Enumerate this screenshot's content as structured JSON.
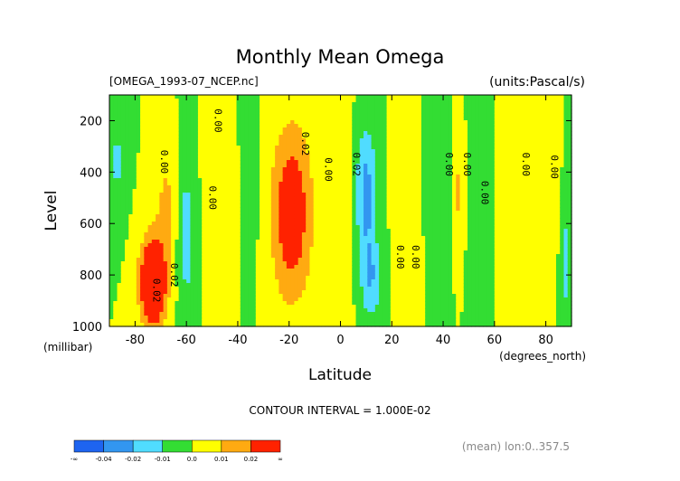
{
  "chart_data": {
    "type": "heatmap",
    "title": "Monthly Mean Omega",
    "subtitle_left": "[OMEGA_1993-07_NCEP.nc]",
    "subtitle_right": "(units:Pascal/s)",
    "xlabel": "Latitude",
    "x_units": "(degrees_north)",
    "ylabel": "Level",
    "y_units": "(millibar)",
    "xlim": [
      -90,
      90
    ],
    "ylim": [
      1000,
      100
    ],
    "y_scale": "linear, inverted",
    "x_ticks": [
      "-80",
      "-60",
      "-40",
      "-20",
      "0",
      "20",
      "40",
      "60",
      "80"
    ],
    "y_ticks": [
      "200",
      "400",
      "600",
      "800",
      "1000"
    ],
    "contour_interval": "CONTOUR INTERVAL = 1.000E-02",
    "footer_note": "(mean) lon:0..357.5",
    "colorbar": {
      "labels": [
        "-∞",
        "-0.04",
        "-0.02",
        "-0.01",
        "0.0",
        "0.01",
        "0.02",
        "∞"
      ],
      "colors": [
        "#1e64f0",
        "#3296f0",
        "#50dcff",
        "#33dd33",
        "#ffff00",
        "#ffaa11",
        "#ff2200"
      ]
    },
    "contour_labels": [
      {
        "text": "0.00",
        "lat": -70,
        "lev": 360
      },
      {
        "text": "0.00",
        "lat": -49,
        "lev": 200
      },
      {
        "text": "0.00",
        "lat": -51,
        "lev": 500
      },
      {
        "text": "0.02",
        "lat": -15,
        "lev": 290
      },
      {
        "text": "0.00",
        "lat": -6,
        "lev": 390
      },
      {
        "text": "0.02",
        "lat": 5,
        "lev": 370
      },
      {
        "text": "0.00",
        "lat": 22,
        "lev": 730
      },
      {
        "text": "0.00",
        "lat": 28,
        "lev": 730
      },
      {
        "text": "0.00",
        "lat": 41,
        "lev": 370
      },
      {
        "text": "0.00",
        "lat": 48,
        "lev": 370
      },
      {
        "text": "0.00",
        "lat": 55,
        "lev": 480
      },
      {
        "text": "0.00",
        "lat": 71,
        "lev": 370
      },
      {
        "text": "0.00",
        "lat": 82,
        "lev": 380
      },
      {
        "text": "0.02",
        "lat": -66,
        "lev": 800
      },
      {
        "text": "0.02",
        "lat": -73,
        "lev": 860
      }
    ],
    "field_features": [
      {
        "lat": -19,
        "lev": 560,
        "value": 0.03,
        "width_deg": 8,
        "height_mb": 340
      },
      {
        "lat": -73,
        "lev": 830,
        "value": 0.05,
        "width_deg": 5,
        "height_mb": 170
      },
      {
        "lat": -68,
        "lev": 520,
        "value": 0.012,
        "width_deg": 4,
        "height_mb": 220
      },
      {
        "lat": 10,
        "lev": 480,
        "value": -0.024,
        "width_deg": 4,
        "height_mb": 260
      },
      {
        "lat": 12,
        "lev": 820,
        "value": -0.018,
        "width_deg": 4,
        "height_mb": 160
      },
      {
        "lat": -60,
        "lev": 650,
        "value": -0.015,
        "width_deg": 3,
        "height_mb": 300
      },
      {
        "lat": -87,
        "lev": 360,
        "value": -0.012,
        "width_deg": 3,
        "height_mb": 200
      },
      {
        "lat": 88,
        "lev": 750,
        "value": -0.012,
        "width_deg": 2,
        "height_mb": 350
      },
      {
        "lat": 46,
        "lev": 480,
        "value": 0.012,
        "width_deg": 1.5,
        "height_mb": 180
      },
      {
        "lat": 75,
        "lev": 600,
        "value": 0.012,
        "width_deg": 1.5,
        "height_mb": 150
      },
      {
        "lat": -45,
        "lev": 520,
        "value": 0.006,
        "width_deg": 6,
        "height_mb": 420
      },
      {
        "lat": 63,
        "lev": 550,
        "value": 0.006,
        "width_deg": 4,
        "height_mb": 450
      },
      {
        "lat": 27,
        "lev": 550,
        "value": 0.006,
        "width_deg": 5,
        "height_mb": 500
      },
      {
        "lat": 2,
        "lev": 550,
        "value": 0.006,
        "width_deg": 3,
        "height_mb": 500
      },
      {
        "lat": -36,
        "lev": 450,
        "value": -0.006,
        "width_deg": 4,
        "height_mb": 380
      },
      {
        "lat": 36,
        "lev": 450,
        "value": -0.006,
        "width_deg": 4,
        "height_mb": 380
      },
      {
        "lat": 57,
        "lev": 600,
        "value": -0.006,
        "width_deg": 4,
        "height_mb": 450
      },
      {
        "lat": 82,
        "lev": 350,
        "value": 0.006,
        "width_deg": 4,
        "height_mb": 300
      }
    ]
  }
}
